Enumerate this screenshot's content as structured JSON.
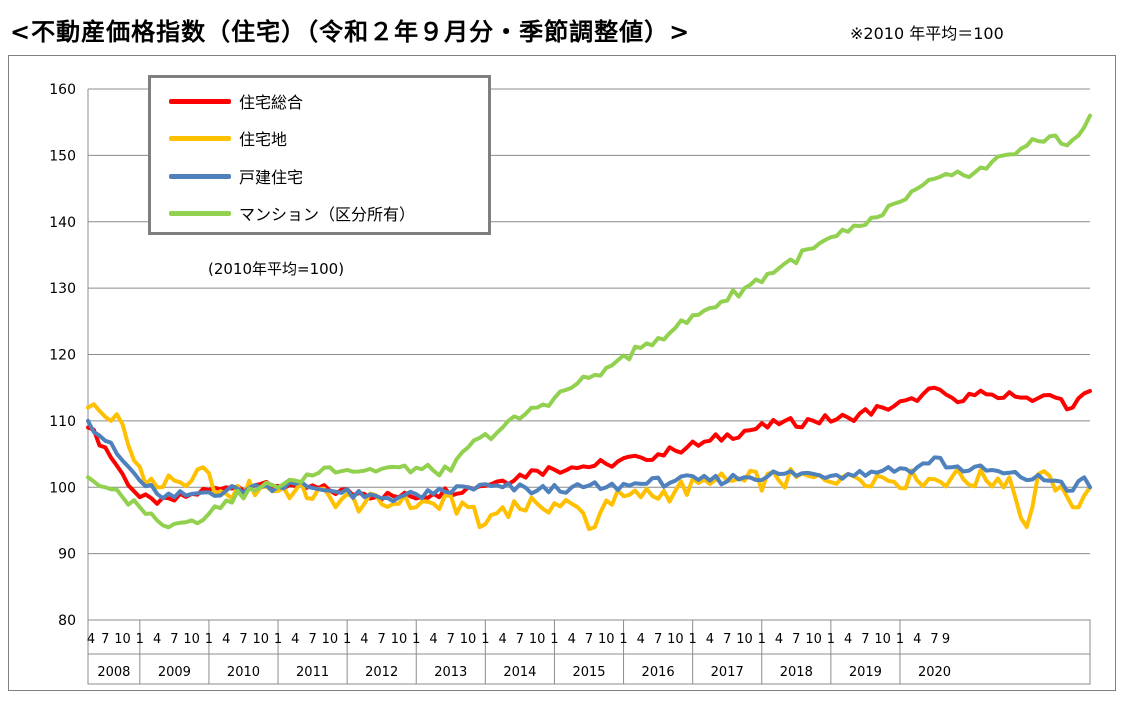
{
  "header": {
    "title": "<不動産価格指数（住宅）（令和２年９月分・季節調整値）>",
    "note": "※2010 年平均＝100"
  },
  "chart_data": {
    "type": "line",
    "title": "不動産価格指数（住宅）（令和２年９月分・季節調整値）",
    "base_note": "(2010年平均=100)",
    "ylim": [
      80,
      160
    ],
    "yticks": [
      80,
      90,
      100,
      110,
      120,
      130,
      140,
      150,
      160
    ],
    "x_start": "2008-04",
    "x_end": "2020-09",
    "years": [
      "2008",
      "2009",
      "2010",
      "2011",
      "2012",
      "2013",
      "2014",
      "2015",
      "2016",
      "2017",
      "2018",
      "2019",
      "2020"
    ],
    "month_labels": [
      "1",
      "4",
      "7",
      "10"
    ],
    "last_month_labels": [
      "1",
      "4",
      "7",
      "9"
    ],
    "grid": true,
    "legend_position": "top-left",
    "series_anchors": [
      {
        "name": "住宅総合",
        "color": "#ff0000",
        "points": [
          [
            0,
            109
          ],
          [
            3,
            106
          ],
          [
            6,
            102
          ],
          [
            9,
            98.5
          ],
          [
            12,
            97.5
          ],
          [
            15,
            98
          ],
          [
            18,
            99
          ],
          [
            24,
            100
          ],
          [
            30,
            100.5
          ],
          [
            36,
            100.2
          ],
          [
            42,
            99.5
          ],
          [
            48,
            99
          ],
          [
            54,
            98.5
          ],
          [
            60,
            99
          ],
          [
            66,
            100
          ],
          [
            72,
            101
          ],
          [
            78,
            102.5
          ],
          [
            84,
            103
          ],
          [
            90,
            103.5
          ],
          [
            96,
            104.5
          ],
          [
            102,
            105.5
          ],
          [
            108,
            107
          ],
          [
            114,
            108.5
          ],
          [
            120,
            109.5
          ],
          [
            126,
            110
          ],
          [
            132,
            110.5
          ],
          [
            138,
            112
          ],
          [
            144,
            113
          ],
          [
            147,
            115
          ],
          [
            150,
            113.5
          ],
          [
            156,
            114
          ],
          [
            162,
            113.5
          ],
          [
            168,
            113.5
          ],
          [
            171,
            112
          ],
          [
            174,
            114.5
          ]
        ],
        "wiggle": 0.8
      },
      {
        "name": "住宅地",
        "color": "#ffc000",
        "points": [
          [
            0,
            112
          ],
          [
            2,
            111.5
          ],
          [
            4,
            110
          ],
          [
            5,
            111
          ],
          [
            8,
            104
          ],
          [
            12,
            100
          ],
          [
            15,
            101
          ],
          [
            18,
            101
          ],
          [
            20,
            103
          ],
          [
            22,
            99
          ],
          [
            24,
            99
          ],
          [
            30,
            100
          ],
          [
            36,
            99.5
          ],
          [
            42,
            98.5
          ],
          [
            48,
            97.5
          ],
          [
            54,
            97.5
          ],
          [
            60,
            97.5
          ],
          [
            66,
            97
          ],
          [
            68,
            94
          ],
          [
            72,
            97
          ],
          [
            78,
            97.5
          ],
          [
            84,
            97.5
          ],
          [
            88,
            94
          ],
          [
            90,
            98
          ],
          [
            96,
            98.5
          ],
          [
            102,
            99.5
          ],
          [
            108,
            100.5
          ],
          [
            114,
            101
          ],
          [
            120,
            101
          ],
          [
            126,
            101.5
          ],
          [
            132,
            102
          ],
          [
            138,
            101.5
          ],
          [
            144,
            101
          ],
          [
            150,
            101.5
          ],
          [
            156,
            101
          ],
          [
            160,
            101.5
          ],
          [
            163,
            94
          ],
          [
            165,
            102
          ],
          [
            168,
            99.5
          ],
          [
            171,
            97
          ],
          [
            174,
            100
          ]
        ],
        "wiggle": 1.6
      },
      {
        "name": "戸建住宅",
        "color": "#4f81bd",
        "points": [
          [
            0,
            110
          ],
          [
            3,
            107
          ],
          [
            6,
            104
          ],
          [
            9,
            101
          ],
          [
            12,
            99
          ],
          [
            15,
            98.5
          ],
          [
            18,
            99
          ],
          [
            24,
            99.5
          ],
          [
            30,
            100
          ],
          [
            36,
            100.5
          ],
          [
            42,
            99.5
          ],
          [
            48,
            98.5
          ],
          [
            54,
            98.5
          ],
          [
            60,
            99
          ],
          [
            66,
            100
          ],
          [
            72,
            100
          ],
          [
            78,
            99.5
          ],
          [
            84,
            100
          ],
          [
            90,
            100
          ],
          [
            96,
            100.5
          ],
          [
            102,
            101
          ],
          [
            108,
            101
          ],
          [
            114,
            101.5
          ],
          [
            120,
            102
          ],
          [
            126,
            102
          ],
          [
            132,
            102
          ],
          [
            138,
            102.5
          ],
          [
            144,
            103
          ],
          [
            147,
            104.5
          ],
          [
            150,
            103
          ],
          [
            156,
            102.5
          ],
          [
            162,
            101.5
          ],
          [
            168,
            101
          ],
          [
            171,
            99.5
          ],
          [
            173,
            101.5
          ],
          [
            174,
            100
          ]
        ],
        "wiggle": 0.8
      },
      {
        "name": "マンション（区分所有）",
        "color": "#92d050",
        "points": [
          [
            0,
            101.5
          ],
          [
            3,
            100
          ],
          [
            6,
            98.5
          ],
          [
            9,
            97
          ],
          [
            12,
            95
          ],
          [
            15,
            94.5
          ],
          [
            18,
            95
          ],
          [
            21,
            96
          ],
          [
            24,
            98
          ],
          [
            30,
            100
          ],
          [
            36,
            101
          ],
          [
            42,
            103
          ],
          [
            48,
            102.5
          ],
          [
            54,
            103
          ],
          [
            60,
            102.5
          ],
          [
            63,
            102.5
          ],
          [
            66,
            106
          ],
          [
            72,
            109
          ],
          [
            78,
            112
          ],
          [
            84,
            115
          ],
          [
            90,
            118
          ],
          [
            96,
            121
          ],
          [
            102,
            124
          ],
          [
            108,
            127
          ],
          [
            114,
            130
          ],
          [
            120,
            133
          ],
          [
            126,
            136
          ],
          [
            132,
            138.5
          ],
          [
            138,
            141
          ],
          [
            141,
            143
          ],
          [
            144,
            145
          ],
          [
            150,
            147
          ],
          [
            156,
            148
          ],
          [
            159,
            150
          ],
          [
            162,
            151
          ],
          [
            168,
            153
          ],
          [
            170,
            151.5
          ],
          [
            172,
            153
          ],
          [
            174,
            156
          ]
        ],
        "wiggle": 0.8
      }
    ]
  }
}
